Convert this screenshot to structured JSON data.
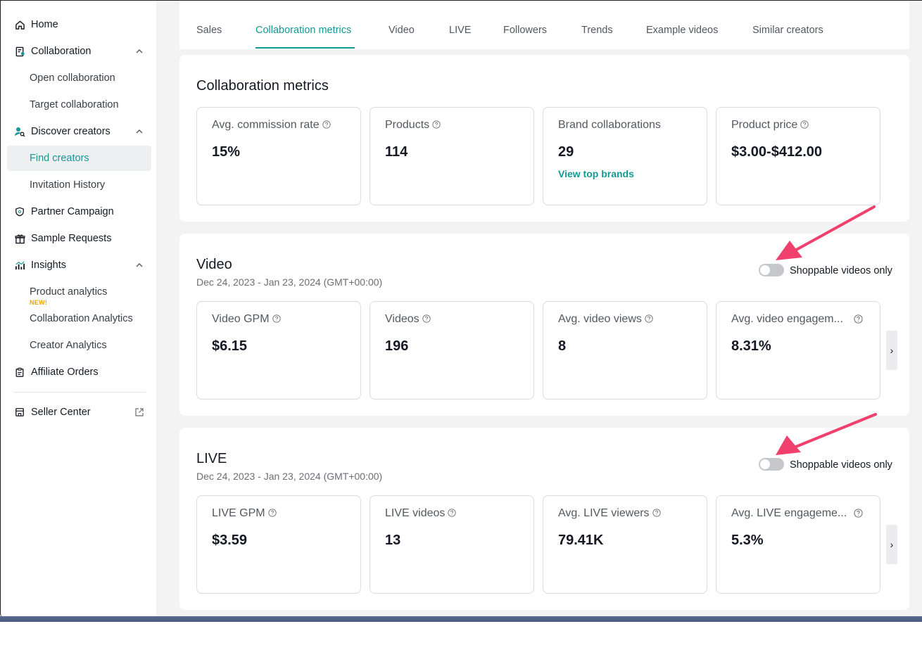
{
  "sidebar": {
    "items": [
      {
        "label": "Home"
      },
      {
        "label": "Collaboration"
      },
      {
        "label": "Open collaboration"
      },
      {
        "label": "Target collaboration"
      },
      {
        "label": "Discover creators"
      },
      {
        "label": "Find creators"
      },
      {
        "label": "Invitation History"
      },
      {
        "label": "Partner Campaign"
      },
      {
        "label": "Sample Requests"
      },
      {
        "label": "Insights"
      },
      {
        "label": "Product analytics"
      },
      {
        "label": "Collaboration Analytics"
      },
      {
        "label": "Creator Analytics"
      },
      {
        "label": "Affiliate Orders"
      },
      {
        "label": "Seller Center"
      }
    ],
    "new_badge": "NEW!"
  },
  "tabs": [
    "Sales",
    "Collaboration metrics",
    "Video",
    "LIVE",
    "Followers",
    "Trends",
    "Example videos",
    "Similar creators"
  ],
  "collab": {
    "title": "Collaboration metrics",
    "cards": [
      {
        "label": "Avg. commission rate",
        "value": "15%"
      },
      {
        "label": "Products",
        "value": "114"
      },
      {
        "label": "Brand collaborations",
        "value": "29",
        "link": "View top brands"
      },
      {
        "label": "Product price",
        "value": "$3.00-$412.00"
      }
    ]
  },
  "video": {
    "title": "Video",
    "date_range": "Dec 24, 2023 - Jan 23, 2024 (GMT+00:00)",
    "toggle_label": "Shoppable videos only",
    "cards": [
      {
        "label": "Video GPM",
        "value": "$6.15"
      },
      {
        "label": "Videos",
        "value": "196"
      },
      {
        "label": "Avg. video views",
        "value": "8"
      },
      {
        "label": "Avg. video engagem...",
        "value": "8.31%"
      }
    ],
    "next": "›"
  },
  "live": {
    "title": "LIVE",
    "date_range": "Dec 24, 2023 - Jan 23, 2024 (GMT+00:00)",
    "toggle_label": "Shoppable videos only",
    "cards": [
      {
        "label": "LIVE GPM",
        "value": "$3.59"
      },
      {
        "label": "LIVE videos",
        "value": "13"
      },
      {
        "label": "Avg. LIVE viewers",
        "value": "79.41K"
      },
      {
        "label": "Avg. LIVE engageme...",
        "value": "5.3%"
      }
    ],
    "next": "›"
  },
  "colors": {
    "accent": "#159895",
    "annotation_arrow": "#f0406e",
    "new_badge": "#e6a40a"
  }
}
